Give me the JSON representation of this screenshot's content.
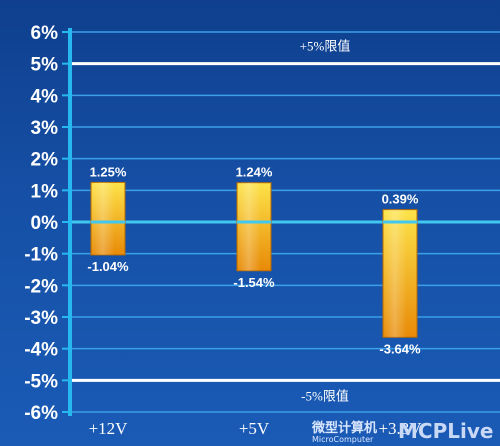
{
  "chart_data": {
    "type": "floating-bar",
    "categories": [
      "+12V",
      "+5V",
      "+3.3V"
    ],
    "series": [
      {
        "high": [
          1.25,
          1.24,
          0.39
        ],
        "low": [
          -1.04,
          -1.54,
          -3.64
        ]
      }
    ],
    "high_labels": [
      "1.25%",
      "1.24%",
      "0.39%"
    ],
    "low_labels": [
      "-1.04%",
      "-1.54%",
      "-3.64%"
    ],
    "ylim": [
      -6,
      6
    ],
    "yticks": [
      6,
      5,
      4,
      3,
      2,
      1,
      0,
      -1,
      -2,
      -3,
      -4,
      -5,
      -6
    ],
    "ytick_labels": [
      "6%",
      "5%",
      "4%",
      "3%",
      "2%",
      "1%",
      "0%",
      "-1%",
      "-2%",
      "-3%",
      "-4%",
      "-5%",
      "-6%"
    ],
    "reference_lines": [
      {
        "value": 5,
        "label": "+5%限值"
      },
      {
        "value": -5,
        "label": "-5%限值"
      }
    ],
    "grid": true,
    "colors": {
      "bar_top": "#fde34a",
      "bar_bottom": "#e88a08",
      "grid": "#3aa0e8",
      "zero_line": "#40c8f0",
      "axis": "#28b8f0",
      "limit_line": "#ffffff"
    }
  },
  "watermark": {
    "brand": "微型计算机",
    "sub": "MicroComputer",
    "logo": "MCPLive"
  }
}
